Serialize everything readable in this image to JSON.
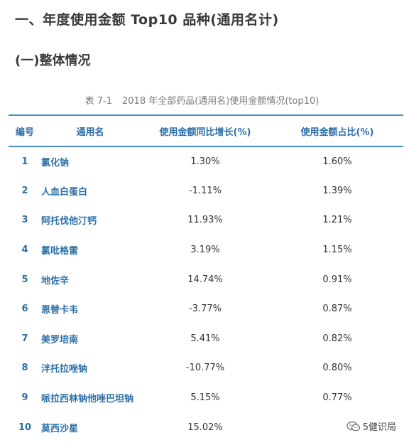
{
  "heading": "一、年度使用金额 Top10 品种(通用名计)",
  "subheading": "(一)整体情况",
  "caption": {
    "label": "表 7-1",
    "text": "2018 年全部药品(通用名)使用金额情况(top10)"
  },
  "table": {
    "headers": {
      "no": "编号",
      "name": "通用名",
      "growth": "使用金额同比增长(%)",
      "share": "使用金额占比(%)"
    },
    "rows": [
      {
        "no": "1",
        "name": "氯化钠",
        "growth": "1.30%",
        "share": "1.60%"
      },
      {
        "no": "2",
        "name": "人血白蛋白",
        "growth": "-1.11%",
        "share": "1.39%"
      },
      {
        "no": "3",
        "name": "阿托伐他汀钙",
        "growth": "11.93%",
        "share": "1.21%"
      },
      {
        "no": "4",
        "name": "氯吡格雷",
        "growth": "3.19%",
        "share": "1.15%"
      },
      {
        "no": "5",
        "name": "地佐辛",
        "growth": "14.74%",
        "share": "0.91%"
      },
      {
        "no": "6",
        "name": "恩替卡韦",
        "growth": "-3.77%",
        "share": "0.87%"
      },
      {
        "no": "7",
        "name": "美罗培南",
        "growth": "5.41%",
        "share": "0.82%"
      },
      {
        "no": "8",
        "name": "泮托拉唑钠",
        "growth": "-10.77%",
        "share": "0.80%"
      },
      {
        "no": "9",
        "name": "哌拉西林钠他唑巴坦钠",
        "growth": "5.15%",
        "share": "0.77%"
      },
      {
        "no": "10",
        "name": "莫西沙星",
        "growth": "15.02%",
        "share": ""
      }
    ]
  },
  "watermark": {
    "icon": "wechat-icon",
    "text": "5健识局"
  },
  "colors": {
    "accent": "#2d6fa7",
    "rule": "#4a90c2"
  }
}
